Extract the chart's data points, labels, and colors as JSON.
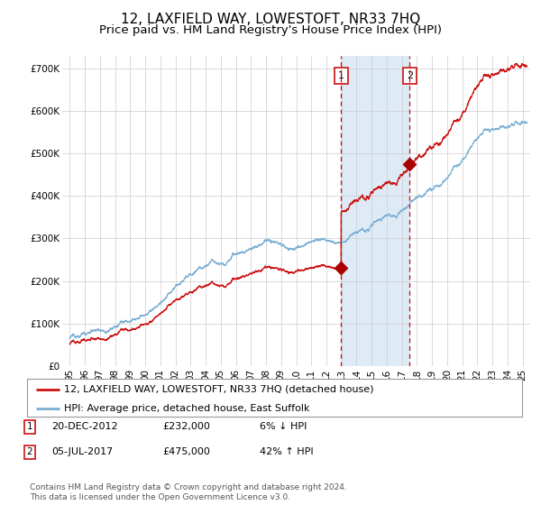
{
  "title": "12, LAXFIELD WAY, LOWESTOFT, NR33 7HQ",
  "subtitle": "Price paid vs. HM Land Registry's House Price Index (HPI)",
  "ylim": [
    0,
    730000
  ],
  "xlim": [
    1994.5,
    2025.5
  ],
  "yticks": [
    0,
    100000,
    200000,
    300000,
    400000,
    500000,
    600000,
    700000
  ],
  "ytick_labels": [
    "£0",
    "£100K",
    "£200K",
    "£300K",
    "£400K",
    "£500K",
    "£600K",
    "£700K"
  ],
  "xticks": [
    1995,
    1996,
    1997,
    1998,
    1999,
    2000,
    2001,
    2002,
    2003,
    2004,
    2005,
    2006,
    2007,
    2008,
    2009,
    2010,
    2011,
    2012,
    2013,
    2014,
    2015,
    2016,
    2017,
    2018,
    2019,
    2020,
    2021,
    2022,
    2023,
    2024,
    2025
  ],
  "transaction1_date": 2012.97,
  "transaction1_price": 232000,
  "transaction2_date": 2017.51,
  "transaction2_price": 475000,
  "transaction1_info": "20-DEC-2012",
  "transaction1_price_str": "£232,000",
  "transaction1_pct": "6% ↓ HPI",
  "transaction2_info": "05-JUL-2017",
  "transaction2_price_str": "£475,000",
  "transaction2_pct": "42% ↑ HPI",
  "hpi_line_color": "#7bafd4",
  "price_line_color": "#cc1111",
  "marker_color": "#aa0000",
  "dashed_line_color": "#cc1111",
  "shaded_region_color": "#deeaf5",
  "background_color": "#ffffff",
  "grid_color": "#cccccc",
  "legend_label_price": "12, LAXFIELD WAY, LOWESTOFT, NR33 7HQ (detached house)",
  "legend_label_hpi": "HPI: Average price, detached house, East Suffolk",
  "footer": "Contains HM Land Registry data © Crown copyright and database right 2024.\nThis data is licensed under the Open Government Licence v3.0.",
  "title_fontsize": 11,
  "subtitle_fontsize": 9.5,
  "tick_fontsize": 7.5,
  "legend_fontsize": 8,
  "footer_fontsize": 6.5
}
